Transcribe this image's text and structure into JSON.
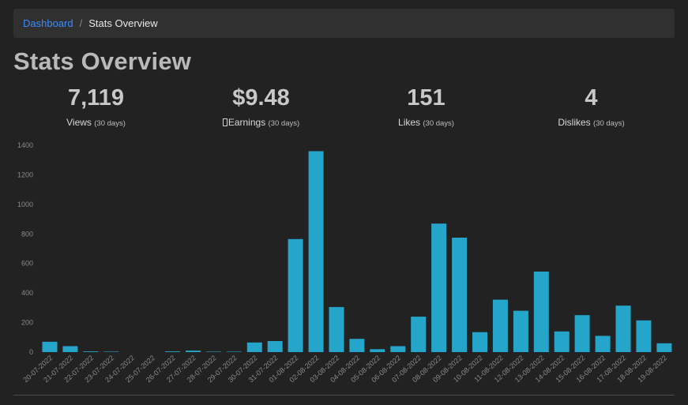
{
  "breadcrumb": {
    "home_label": "Dashboard",
    "separator": "/",
    "current_label": "Stats Overview"
  },
  "page": {
    "title": "Stats Overview"
  },
  "stats": [
    {
      "value": "7,119",
      "label": "Views",
      "period": "(30 days)",
      "has_icon": false
    },
    {
      "value": "$9.48",
      "label": "Earnings",
      "period": "(30 days)",
      "has_icon": true
    },
    {
      "value": "151",
      "label": "Likes",
      "period": "(30 days)",
      "has_icon": false
    },
    {
      "value": "4",
      "label": "Dislikes",
      "period": "(30 days)",
      "has_icon": false
    }
  ],
  "colors": {
    "bar": "#25a5c9",
    "axis_text": "#8a8a8a",
    "accent_link": "#3d8bfd"
  },
  "chart_data": {
    "type": "bar",
    "categories": [
      "20-07-2022",
      "21-07-2022",
      "22-07-2022",
      "23-07-2022",
      "24-07-2022",
      "25-07-2022",
      "26-07-2022",
      "27-07-2022",
      "28-07-2022",
      "29-07-2022",
      "30-07-2022",
      "31-07-2022",
      "01-08-2022",
      "02-08-2022",
      "03-08-2022",
      "04-08-2022",
      "05-08-2022",
      "06-08-2022",
      "07-08-2022",
      "08-08-2022",
      "09-08-2022",
      "10-08-2022",
      "11-08-2022",
      "12-08-2022",
      "13-08-2022",
      "14-08-2022",
      "15-08-2022",
      "16-08-2022",
      "17-08-2022",
      "18-08-2022",
      "19-08-2022"
    ],
    "values": [
      70,
      40,
      5,
      3,
      0,
      0,
      5,
      10,
      3,
      3,
      65,
      75,
      765,
      1360,
      305,
      90,
      20,
      40,
      240,
      870,
      775,
      135,
      355,
      280,
      545,
      140,
      250,
      110,
      315,
      215,
      60
    ],
    "yticks": [
      0,
      200,
      400,
      600,
      800,
      1000,
      1200,
      1400
    ],
    "ylim": [
      0,
      1400
    ],
    "title": "",
    "xlabel": "",
    "ylabel": "",
    "grid": false,
    "legend": "none"
  }
}
